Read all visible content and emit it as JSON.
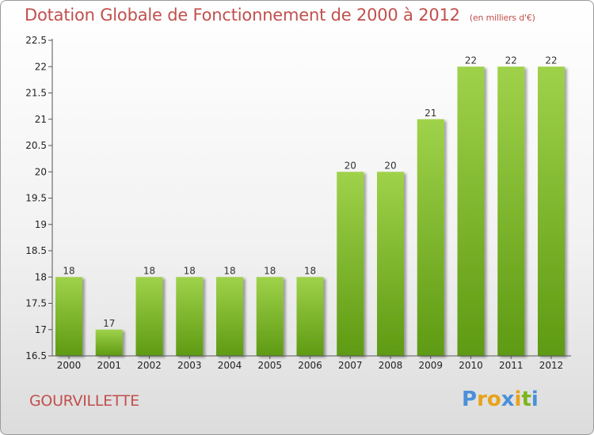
{
  "title": "Dotation Globale de Fonctionnement de 2000 à 2012",
  "subtitle": "(en milliers d'€)",
  "commune": "GOURVILLETTE",
  "logo": {
    "text": "Proxiti",
    "letters": [
      {
        "ch": "P",
        "color": "#4a90d9"
      },
      {
        "ch": "r",
        "color": "#e8a21b"
      },
      {
        "ch": "o",
        "color": "#e8a21b"
      },
      {
        "ch": "x",
        "color": "#4a90d9"
      },
      {
        "ch": "i",
        "color": "#e8a21b"
      },
      {
        "ch": "t",
        "color": "#7cb518"
      },
      {
        "ch": "i",
        "color": "#4a90d9"
      }
    ]
  },
  "colors": {
    "title": "#c0504d",
    "bar_light": "#9fd24a",
    "bar_dark": "#5e9a13",
    "axis": "#555555"
  },
  "chart_data": {
    "type": "bar",
    "categories": [
      "2000",
      "2001",
      "2002",
      "2003",
      "2004",
      "2005",
      "2006",
      "2007",
      "2008",
      "2009",
      "2010",
      "2011",
      "2012"
    ],
    "values": [
      18,
      17,
      18,
      18,
      18,
      18,
      18,
      20,
      20,
      21,
      22,
      22,
      22
    ],
    "data_labels": [
      "18",
      "17",
      "18",
      "18",
      "18",
      "18",
      "18",
      "20",
      "20",
      "21",
      "22",
      "22",
      "22"
    ],
    "ylim": [
      16.5,
      22.5
    ],
    "yticks": [
      16.5,
      17,
      17.5,
      18,
      18.5,
      19,
      19.5,
      20,
      20.5,
      21,
      21.5,
      22,
      22.5
    ],
    "ytick_labels": [
      "16.5",
      "17",
      "17.5",
      "18",
      "18.5",
      "19",
      "19.5",
      "20",
      "20.5",
      "21",
      "21.5",
      "22",
      "22.5"
    ],
    "xlabel": "",
    "ylabel": "",
    "grid": false,
    "legend": false
  }
}
